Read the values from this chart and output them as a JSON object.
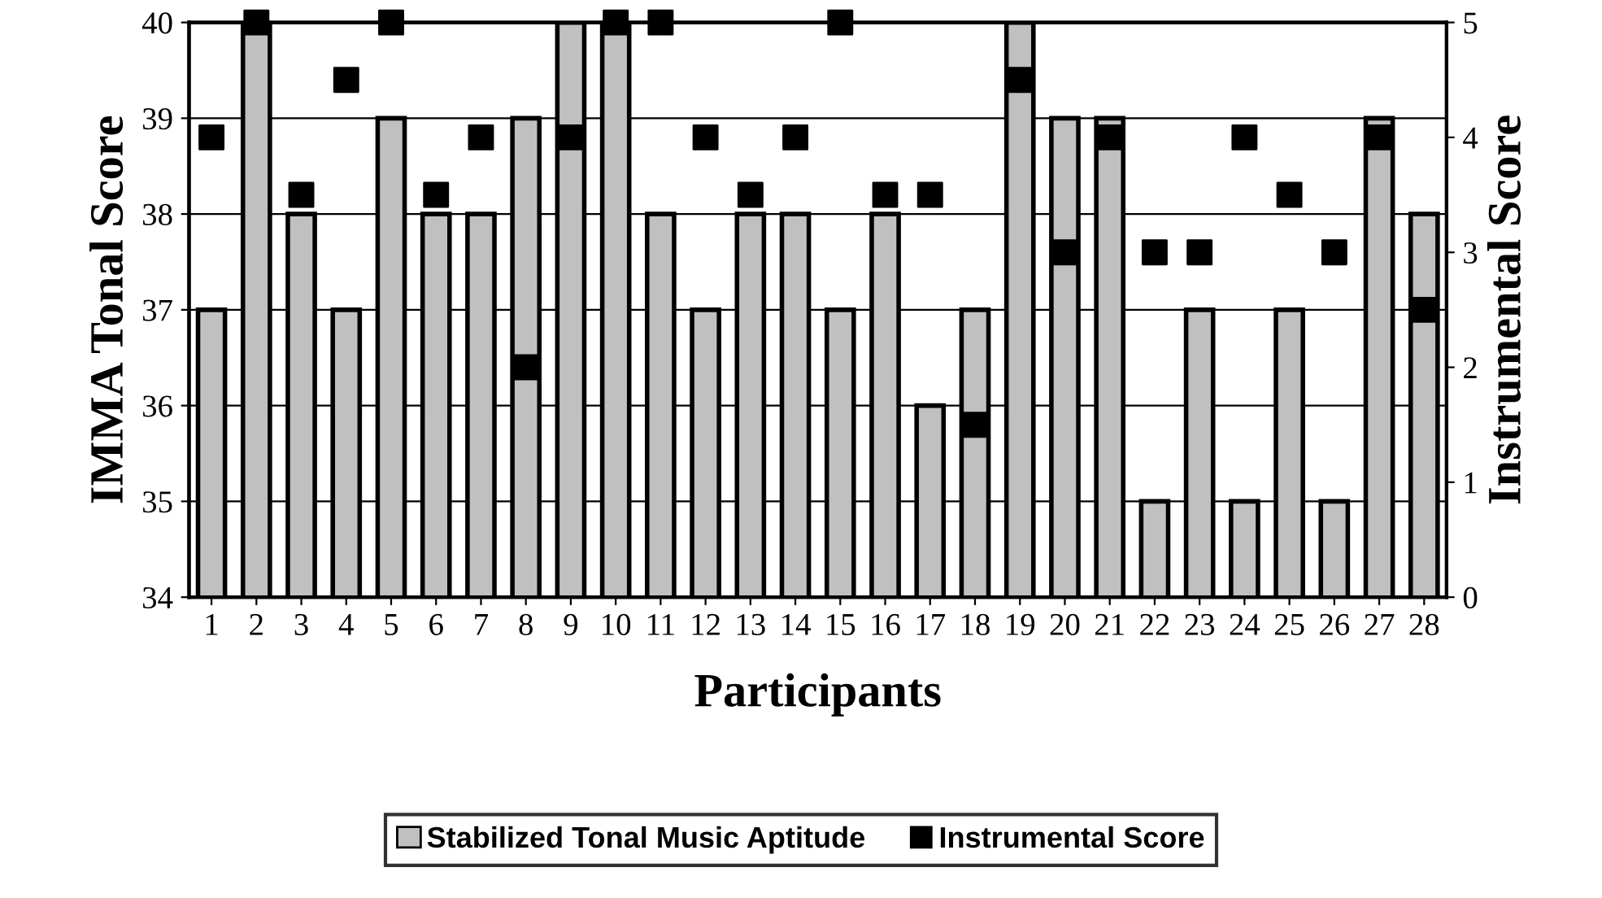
{
  "chart_data": {
    "type": "bar",
    "xlabel": "Participants",
    "ylabel": "IMMA Tonal Score",
    "y2label": "Instrumental Score",
    "categories": [
      "1",
      "2",
      "3",
      "4",
      "5",
      "6",
      "7",
      "8",
      "9",
      "10",
      "11",
      "12",
      "13",
      "14",
      "15",
      "16",
      "17",
      "18",
      "19",
      "20",
      "21",
      "22",
      "23",
      "24",
      "25",
      "26",
      "27",
      "28"
    ],
    "series": [
      {
        "name": "Stabilized Tonal Music Aptitude",
        "color": "#c0c0c0",
        "values": [
          37,
          40,
          38,
          37,
          39,
          38,
          38,
          39,
          40,
          40,
          38,
          37,
          38,
          38,
          37,
          38,
          36,
          37,
          40,
          39,
          39,
          35,
          37,
          35,
          37,
          35,
          39,
          38
        ]
      },
      {
        "name": "Instrumental Score",
        "type": "scatter",
        "axis": "y2",
        "color": "#000000",
        "values": [
          4,
          5,
          3.5,
          4.5,
          5,
          3.5,
          4,
          2,
          4,
          5,
          5,
          4,
          3.5,
          4,
          5,
          3.5,
          3.5,
          1.5,
          4.5,
          3,
          4,
          3,
          3,
          4,
          3.5,
          3,
          4,
          2.5
        ]
      }
    ],
    "ylim": [
      34,
      40
    ],
    "yticks": [
      34,
      35,
      36,
      37,
      38,
      39,
      40
    ],
    "y2lim": [
      0,
      5
    ],
    "y2ticks": [
      0,
      1,
      2,
      3,
      4,
      5
    ],
    "grid": "y",
    "legend": "bottom",
    "marker": "square"
  }
}
